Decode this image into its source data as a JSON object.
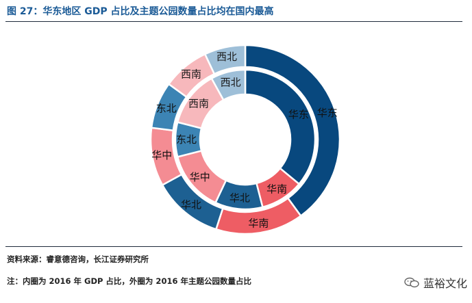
{
  "title": "图 27：华东地区 GDP 占比及主题公园数量占比均在国内最高",
  "source": "资料来源：睿意德咨询，长江证券研究所",
  "footnote": "注：内圈为 2016 年 GDP 占比，外圈为 2016 年主题公园数量占比",
  "watermark": "蓝裕文化",
  "watermark_icon": "wechat-icon",
  "colors": {
    "华东": "#08487e",
    "华南": "#ee5d64",
    "华北": "#1d6092",
    "华中": "#f48c93",
    "东北": "#3c84b4",
    "西南": "#f7b8bc",
    "西北": "#9ebfd8",
    "title": "#1a5a96"
  },
  "chart_data": {
    "type": "donut",
    "title": "图 27：华东地区 GDP 占比及主题公园数量占比均在国内最高",
    "series": [
      {
        "name": "内圈：2016 年 GDP 占比",
        "ring": "inner",
        "categories": [
          "华东",
          "华南",
          "华北",
          "华中",
          "东北",
          "西南",
          "西北"
        ],
        "values": [
          36,
          10,
          11,
          14,
          8,
          13,
          8
        ],
        "unit": "%"
      },
      {
        "name": "外圈：2016 年主题公园数量占比",
        "ring": "outer",
        "categories": [
          "华东",
          "华南",
          "华北",
          "华中",
          "东北",
          "西南",
          "西北"
        ],
        "values": [
          40,
          15,
          12,
          10,
          8,
          8,
          7
        ],
        "unit": "%"
      }
    ],
    "start_angle_deg": 0,
    "direction": "clockwise"
  }
}
